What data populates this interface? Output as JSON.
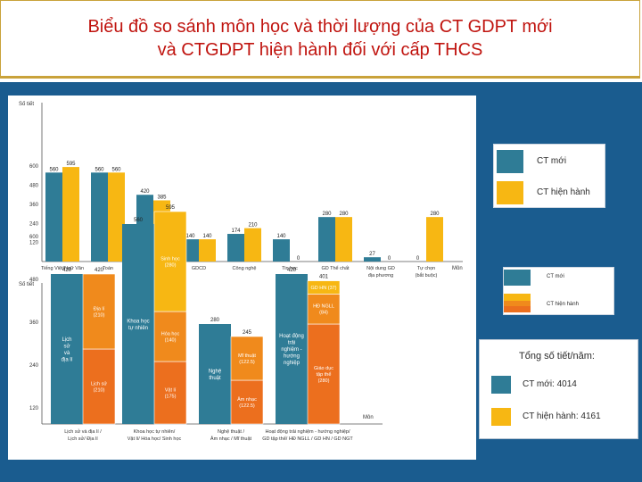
{
  "header": {
    "title_line1": "Biểu đồ so sánh môn học và thời lượng của CT GDPT mới",
    "title_line2": "và CTGDPT hiện hành đối với cấp THCS"
  },
  "colors": {
    "moi": "#2f7c96",
    "hien_hanh": "#f7b713",
    "hien_hanh_dark": "#f08a1c",
    "hien_hanh_orange": "#ec6f1e",
    "title": "#c0140f",
    "background": "#1a5c8f"
  },
  "chart_data": [
    {
      "type": "bar",
      "ylabel": "Số tiết",
      "xlabel": "Môn",
      "ylim": [
        0,
        630
      ],
      "yticks": [
        "600",
        "480",
        "360",
        "240",
        "120"
      ],
      "categories": [
        "Tiếng Việt/Ngữ Văn",
        "Toán",
        "Ngoại ngữ 1",
        "GDCD",
        "Công nghệ",
        "Tin học",
        "GD Thể chất",
        "Nội dung GD địa phương",
        "Tự chọn (bắt buộc)"
      ],
      "category_labels": [
        [
          "Tiếng Việt/Ngữ Văn"
        ],
        [
          "Toán"
        ],
        [
          "Ngoại ngữ 1"
        ],
        [
          "GDCD"
        ],
        [
          "Công nghệ"
        ],
        [
          "Tin học"
        ],
        [
          "GD Thể chất"
        ],
        [
          "Nội dung GD",
          "địa phương"
        ],
        [
          "Tự chọn",
          "(bắt buộc)"
        ]
      ],
      "series": [
        {
          "name": "CT mới",
          "values": [
            560,
            560,
            420,
            140,
            174,
            140,
            280,
            27,
            0
          ],
          "labels": [
            "560",
            "560",
            "420",
            "140",
            "174",
            "140",
            "280",
            "27",
            "0"
          ]
        },
        {
          "name": "CT hiện hành",
          "values": [
            595,
            560,
            385,
            140,
            210,
            0,
            280,
            0,
            280
          ],
          "labels": [
            "595",
            "560",
            "385",
            "140",
            "210",
            "0",
            "280",
            "0",
            "280"
          ]
        }
      ]
    },
    {
      "type": "stacked-bar",
      "ylabel": "Số tiết",
      "xlabel": "Môn",
      "ylim": [
        0,
        630
      ],
      "yticks": [
        "600",
        "480",
        "360",
        "240",
        "120"
      ],
      "groups": [
        {
          "category_lines": [
            "Lịch sử và địa lí /",
            "Lịch sử/ Địa lí"
          ],
          "moi": {
            "total": "420",
            "segments": [
              {
                "value": 420,
                "label_lines": [
                  "Lịch",
                  "sử",
                  "và",
                  "địa lí"
                ]
              }
            ]
          },
          "hien_hanh": {
            "total": "420",
            "segments": [
              {
                "value": 210,
                "label_lines": [
                  "Lịch sử",
                  "(210)"
                ]
              },
              {
                "value": 210,
                "label_lines": [
                  "Địa lí",
                  "(210)"
                ]
              }
            ]
          }
        },
        {
          "category_lines": [
            "Khoa học tự nhiên/",
            "Vật lí/ Hóa học/ Sinh học"
          ],
          "moi": {
            "total": "560",
            "segments": [
              {
                "value": 560,
                "label_lines": [
                  "Khoa học",
                  "tự nhiên"
                ]
              }
            ]
          },
          "hien_hanh": {
            "total": "595",
            "segments": [
              {
                "value": 175,
                "label_lines": [
                  "Vật lí",
                  "(175)"
                ]
              },
              {
                "value": 140,
                "label_lines": [
                  "Hóa học",
                  "(140)"
                ]
              },
              {
                "value": 280,
                "label_lines": [
                  "Sinh học",
                  "(280)"
                ]
              }
            ]
          }
        },
        {
          "category_lines": [
            "Nghệ thuật /",
            "Âm nhạc / Mĩ thuật"
          ],
          "moi": {
            "total": "280",
            "segments": [
              {
                "value": 280,
                "label_lines": [
                  "Nghệ",
                  "thuật"
                ]
              }
            ]
          },
          "hien_hanh": {
            "total": "245",
            "segments": [
              {
                "value": 122.5,
                "label_lines": [
                  "Âm nhạc",
                  "(122.5)"
                ]
              },
              {
                "value": 122.5,
                "label_lines": [
                  "Mĩ thuật",
                  "(122.5)"
                ]
              }
            ]
          }
        },
        {
          "category_lines": [
            "Hoạt động trải nghiệm - hướng nghiệp/",
            "GD tập thể/ HĐ NGLL / GD HN / GD NGT"
          ],
          "moi": {
            "total": "420",
            "segments": [
              {
                "value": 420,
                "label_lines": [
                  "Hoạt động",
                  "trải",
                  "nghiệm -",
                  "hướng",
                  "nghiệp"
                ]
              }
            ]
          },
          "hien_hanh": {
            "total": "401",
            "segments": [
              {
                "value": 280,
                "label_lines": [
                  "Giáo dục",
                  "tập thể",
                  "(280)"
                ]
              },
              {
                "value": 84,
                "label_lines": [
                  "HĐ NGLL",
                  "(84)"
                ]
              },
              {
                "value": 37,
                "label_lines": [
                  "GD HN (37)"
                ]
              }
            ]
          }
        }
      ]
    }
  ],
  "legend1": {
    "moi": "CT mới",
    "hien_hanh": "CT hiện hành"
  },
  "legend2": {
    "moi": "CT mới",
    "hien_hanh": "CT hiện hành"
  },
  "totals": {
    "title": "Tổng số tiết/năm:",
    "moi": "CT mới: 4014",
    "hien_hanh": "CT hiện hành: 4161"
  }
}
